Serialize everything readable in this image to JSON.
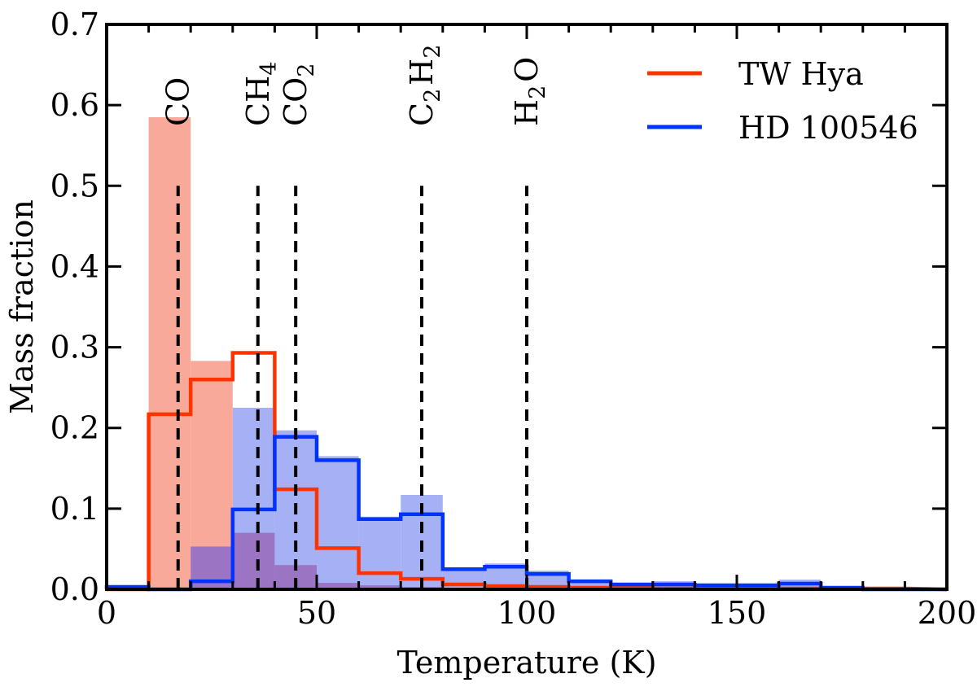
{
  "chart_data": {
    "type": "bar",
    "xlabel": "Temperature (K)",
    "ylabel": "Mass fraction",
    "xlim": [
      0,
      200
    ],
    "ylim": [
      0,
      0.7
    ],
    "x_ticks": [
      0,
      50,
      100,
      150,
      200
    ],
    "y_ticks": [
      0.0,
      0.1,
      0.2,
      0.3,
      0.4,
      0.5,
      0.6,
      0.7
    ],
    "x_tick_labels": [
      "0",
      "50",
      "100",
      "150",
      "200"
    ],
    "y_tick_labels": [
      "0.0",
      "0.1",
      "0.2",
      "0.3",
      "0.4",
      "0.5",
      "0.6",
      "0.7"
    ],
    "grid": false,
    "legend_position": "top-right",
    "bin_edges": [
      0,
      10,
      20,
      30,
      40,
      50,
      60,
      70,
      80,
      90,
      100,
      110,
      120,
      130,
      140,
      150,
      160,
      170,
      180,
      190
    ],
    "series": [
      {
        "name": "TW Hya",
        "color": "#ff3300",
        "style": "step",
        "values": [
          0.0,
          0.217,
          0.26,
          0.293,
          0.124,
          0.051,
          0.02,
          0.013,
          0.006,
          0.004,
          0.003,
          0.002,
          0.002,
          0.001,
          0.001,
          0.001,
          0.001,
          0.001,
          0.001
        ]
      },
      {
        "name": "HD 100546",
        "color": "#0033ff",
        "style": "step",
        "values": [
          0.003,
          0.0,
          0.01,
          0.099,
          0.189,
          0.16,
          0.087,
          0.093,
          0.025,
          0.028,
          0.019,
          0.01,
          0.006,
          0.006,
          0.005,
          0.005,
          0.007,
          0.002,
          0.0
        ]
      },
      {
        "color": "#f9a999",
        "style": "filled",
        "values": [
          0.003,
          0.585,
          0.283,
          0.0,
          0.0,
          0.0,
          0.0,
          0.0,
          0.0,
          0.0,
          0.0,
          0.0,
          0.0,
          0.0,
          0.0,
          0.0,
          0.0,
          0.0,
          0.0
        ]
      },
      {
        "color": "#a6b0f4",
        "style": "filled",
        "values": [
          0.0,
          0.0,
          0.003,
          0.225,
          0.197,
          0.165,
          0.09,
          0.117,
          0.025,
          0.032,
          0.023,
          0.01,
          0.008,
          0.01,
          0.005,
          0.005,
          0.012,
          0.002,
          0.0
        ]
      },
      {
        "color": "#9b75c4",
        "style": "filled",
        "values": [
          0.0,
          0.0,
          0.053,
          0.07,
          0.03,
          0.008,
          0.005,
          0.003,
          0.001,
          0.001,
          0.001,
          0.001,
          0.0,
          0.0,
          0.0,
          0.0,
          0.0,
          0.0,
          0.0
        ]
      }
    ],
    "annotations": [
      {
        "x": 17,
        "base": "CO",
        "sub": ""
      },
      {
        "x": 36,
        "base": "CH",
        "sub": "4"
      },
      {
        "x": 45,
        "base": "CO",
        "sub": "2"
      },
      {
        "x": 75,
        "base": "C H",
        "sub": "2 2"
      },
      {
        "x": 100,
        "base": "H O",
        "sub": "2"
      }
    ],
    "vlines_ymax": 0.5
  }
}
